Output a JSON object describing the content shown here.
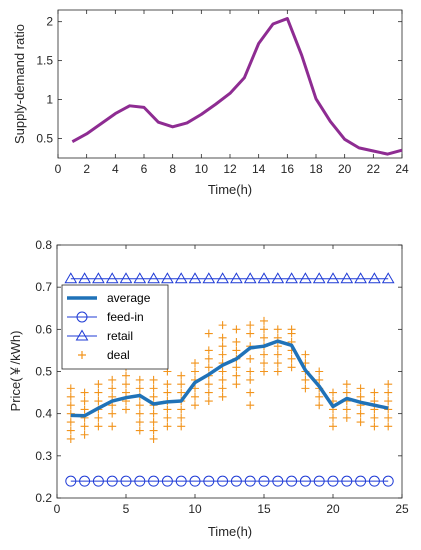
{
  "colors": {
    "ratio_line": "#8E2C92",
    "average_line": "#1F72B8",
    "feedin_marker": "#1F3BD6",
    "retail_marker": "#1F3BD6",
    "deal_marker": "#F2941C",
    "axis": "#262626"
  },
  "chart_data": [
    {
      "type": "line",
      "xlabel": "Time(h)",
      "ylabel": "Supply-demand ratio",
      "xlim": [
        0,
        24
      ],
      "ylim": [
        0.25,
        2.15
      ],
      "xticks": [
        0,
        2,
        4,
        6,
        8,
        10,
        12,
        14,
        16,
        18,
        20,
        22,
        24
      ],
      "yticks": [
        0.5,
        1,
        1.5,
        2
      ],
      "ytick_labels": [
        "0.5",
        "1",
        "1.5",
        "2"
      ],
      "grid": false,
      "series": [
        {
          "x": [
            1,
            2,
            3,
            4,
            5,
            6,
            7,
            8,
            9,
            10,
            11,
            12,
            13,
            14,
            15,
            16,
            17,
            18,
            19,
            20,
            21,
            22,
            23,
            24
          ],
          "values": [
            0.46,
            0.56,
            0.69,
            0.82,
            0.92,
            0.9,
            0.71,
            0.65,
            0.7,
            0.81,
            0.94,
            1.08,
            1.28,
            1.72,
            1.97,
            2.04,
            1.57,
            1.01,
            0.72,
            0.49,
            0.38,
            0.34,
            0.3,
            0.35
          ]
        }
      ]
    },
    {
      "type": "line",
      "xlabel": "Time(h)",
      "ylabel": "Price(￥/kWh)",
      "xlim": [
        0,
        25
      ],
      "ylim": [
        0.2,
        0.8
      ],
      "xticks": [
        0,
        5,
        10,
        15,
        20,
        25
      ],
      "yticks": [
        0.2,
        0.3,
        0.4,
        0.5,
        0.6,
        0.7,
        0.8
      ],
      "ytick_labels": [
        "0.2",
        "0.3",
        "0.4",
        "0.5",
        "0.6",
        "0.7",
        "0.8"
      ],
      "grid": false,
      "legend_position": "left",
      "x": [
        1,
        2,
        3,
        4,
        5,
        6,
        7,
        8,
        9,
        10,
        11,
        12,
        13,
        14,
        15,
        16,
        17,
        18,
        19,
        20,
        21,
        22,
        23,
        24
      ],
      "series": [
        {
          "name": "average",
          "values": [
            0.396,
            0.395,
            0.413,
            0.43,
            0.438,
            0.443,
            0.423,
            0.428,
            0.43,
            0.474,
            0.493,
            0.515,
            0.53,
            0.556,
            0.56,
            0.572,
            0.562,
            0.503,
            0.465,
            0.417,
            0.436,
            0.427,
            0.42,
            0.413
          ]
        },
        {
          "name": "feed-in",
          "values": [
            0.24,
            0.24,
            0.24,
            0.24,
            0.24,
            0.24,
            0.24,
            0.24,
            0.24,
            0.24,
            0.24,
            0.24,
            0.24,
            0.24,
            0.24,
            0.24,
            0.24,
            0.24,
            0.24,
            0.24,
            0.24,
            0.24,
            0.24,
            0.24
          ]
        },
        {
          "name": "retail",
          "values": [
            0.72,
            0.72,
            0.72,
            0.72,
            0.72,
            0.72,
            0.72,
            0.72,
            0.72,
            0.72,
            0.72,
            0.72,
            0.72,
            0.72,
            0.72,
            0.72,
            0.72,
            0.72,
            0.72,
            0.72,
            0.72,
            0.72,
            0.72,
            0.72
          ]
        },
        {
          "name": "deal",
          "points": [
            [
              1,
              0.34
            ],
            [
              1,
              0.36
            ],
            [
              1,
              0.38
            ],
            [
              1,
              0.4
            ],
            [
              1,
              0.42
            ],
            [
              1,
              0.44
            ],
            [
              1,
              0.46
            ],
            [
              2,
              0.35
            ],
            [
              2,
              0.37
            ],
            [
              2,
              0.39
            ],
            [
              2,
              0.41
            ],
            [
              2,
              0.43
            ],
            [
              2,
              0.45
            ],
            [
              3,
              0.37
            ],
            [
              3,
              0.39
            ],
            [
              3,
              0.41
            ],
            [
              3,
              0.43
            ],
            [
              3,
              0.45
            ],
            [
              3,
              0.47
            ],
            [
              4,
              0.37
            ],
            [
              4,
              0.4
            ],
            [
              4,
              0.42
            ],
            [
              4,
              0.44
            ],
            [
              4,
              0.46
            ],
            [
              4,
              0.48
            ],
            [
              5,
              0.41
            ],
            [
              5,
              0.43
            ],
            [
              5,
              0.45
            ],
            [
              5,
              0.47
            ],
            [
              5,
              0.49
            ],
            [
              5,
              0.51
            ],
            [
              6,
              0.36
            ],
            [
              6,
              0.38
            ],
            [
              6,
              0.4
            ],
            [
              6,
              0.42
            ],
            [
              6,
              0.44
            ],
            [
              6,
              0.46
            ],
            [
              6,
              0.48
            ],
            [
              7,
              0.34
            ],
            [
              7,
              0.36
            ],
            [
              7,
              0.38
            ],
            [
              7,
              0.4
            ],
            [
              7,
              0.42
            ],
            [
              7,
              0.44
            ],
            [
              7,
              0.46
            ],
            [
              7,
              0.48
            ],
            [
              8,
              0.37
            ],
            [
              8,
              0.39
            ],
            [
              8,
              0.41
            ],
            [
              8,
              0.43
            ],
            [
              8,
              0.45
            ],
            [
              8,
              0.47
            ],
            [
              8,
              0.5
            ],
            [
              9,
              0.37
            ],
            [
              9,
              0.39
            ],
            [
              9,
              0.41
            ],
            [
              9,
              0.43
            ],
            [
              9,
              0.45
            ],
            [
              9,
              0.47
            ],
            [
              9,
              0.49
            ],
            [
              10,
              0.42
            ],
            [
              10,
              0.44
            ],
            [
              10,
              0.46
            ],
            [
              10,
              0.48
            ],
            [
              10,
              0.5
            ],
            [
              10,
              0.52
            ],
            [
              11,
              0.43
            ],
            [
              11,
              0.45
            ],
            [
              11,
              0.47
            ],
            [
              11,
              0.49
            ],
            [
              11,
              0.51
            ],
            [
              11,
              0.53
            ],
            [
              11,
              0.55
            ],
            [
              11,
              0.59
            ],
            [
              12,
              0.44
            ],
            [
              12,
              0.46
            ],
            [
              12,
              0.48
            ],
            [
              12,
              0.5
            ],
            [
              12,
              0.52
            ],
            [
              12,
              0.54
            ],
            [
              12,
              0.56
            ],
            [
              12,
              0.58
            ],
            [
              12,
              0.61
            ],
            [
              13,
              0.47
            ],
            [
              13,
              0.49
            ],
            [
              13,
              0.51
            ],
            [
              13,
              0.53
            ],
            [
              13,
              0.55
            ],
            [
              13,
              0.57
            ],
            [
              13,
              0.6
            ],
            [
              14,
              0.42
            ],
            [
              14,
              0.45
            ],
            [
              14,
              0.48
            ],
            [
              14,
              0.5
            ],
            [
              14,
              0.53
            ],
            [
              14,
              0.56
            ],
            [
              14,
              0.59
            ],
            [
              14,
              0.61
            ],
            [
              15,
              0.5
            ],
            [
              15,
              0.52
            ],
            [
              15,
              0.54
            ],
            [
              15,
              0.56
            ],
            [
              15,
              0.58
            ],
            [
              15,
              0.6
            ],
            [
              15,
              0.62
            ],
            [
              16,
              0.5
            ],
            [
              16,
              0.52
            ],
            [
              16,
              0.54
            ],
            [
              16,
              0.56
            ],
            [
              16,
              0.58
            ],
            [
              16,
              0.6
            ],
            [
              17,
              0.51
            ],
            [
              17,
              0.53
            ],
            [
              17,
              0.55
            ],
            [
              17,
              0.57
            ],
            [
              17,
              0.59
            ],
            [
              17,
              0.6
            ],
            [
              18,
              0.46
            ],
            [
              18,
              0.48
            ],
            [
              18,
              0.5
            ],
            [
              18,
              0.52
            ],
            [
              18,
              0.54
            ],
            [
              19,
              0.42
            ],
            [
              19,
              0.44
            ],
            [
              19,
              0.46
            ],
            [
              19,
              0.48
            ],
            [
              19,
              0.5
            ],
            [
              20,
              0.37
            ],
            [
              20,
              0.39
            ],
            [
              20,
              0.41
            ],
            [
              20,
              0.43
            ],
            [
              20,
              0.45
            ],
            [
              21,
              0.39
            ],
            [
              21,
              0.41
            ],
            [
              21,
              0.43
            ],
            [
              21,
              0.45
            ],
            [
              21,
              0.47
            ],
            [
              22,
              0.38
            ],
            [
              22,
              0.4
            ],
            [
              22,
              0.42
            ],
            [
              22,
              0.44
            ],
            [
              22,
              0.46
            ],
            [
              23,
              0.37
            ],
            [
              23,
              0.39
            ],
            [
              23,
              0.41
            ],
            [
              23,
              0.43
            ],
            [
              23,
              0.45
            ],
            [
              24,
              0.37
            ],
            [
              24,
              0.39
            ],
            [
              24,
              0.41
            ],
            [
              24,
              0.43
            ],
            [
              24,
              0.45
            ],
            [
              24,
              0.47
            ]
          ]
        }
      ]
    }
  ]
}
